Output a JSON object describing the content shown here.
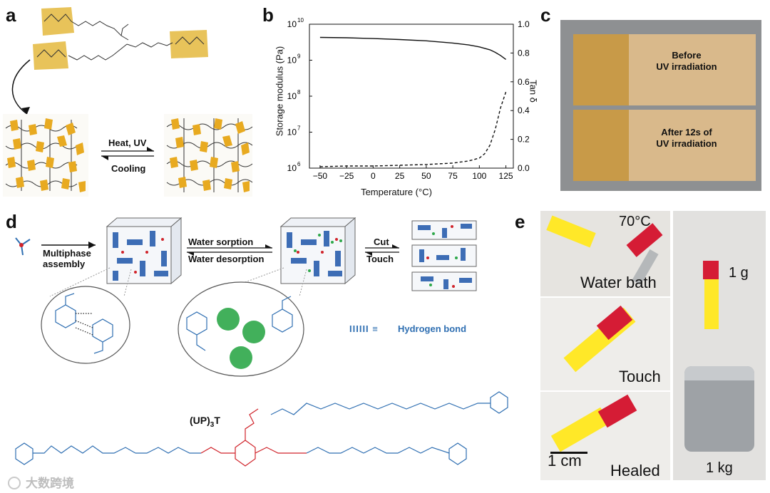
{
  "panels": {
    "a": "a",
    "b": "b",
    "c": "c",
    "d": "d",
    "e": "e"
  },
  "panel_a": {
    "forward": "Heat, UV",
    "reverse": "Cooling"
  },
  "chart_data": {
    "type": "line",
    "xlabel": "Temperature (°C)",
    "ylabel": "Storage modulus (Pa)",
    "y2label": "Tan δ",
    "x_ticks": [
      "−50",
      "−25",
      "0",
      "25",
      "50",
      "75",
      "100",
      "125"
    ],
    "x_tick_values": [
      -50,
      -25,
      0,
      25,
      50,
      75,
      100,
      125
    ],
    "xlim": [
      -60,
      132
    ],
    "ylim_log10": [
      6,
      10
    ],
    "y_ticks": [
      {
        "base": "10",
        "exp": "10",
        "v": 10
      },
      {
        "base": "10",
        "exp": "9",
        "v": 9
      },
      {
        "base": "10",
        "exp": "8",
        "v": 8
      },
      {
        "base": "10",
        "exp": "7",
        "v": 7
      },
      {
        "base": "10",
        "exp": "6",
        "v": 6
      }
    ],
    "y2lim": [
      0,
      1.0
    ],
    "y2_ticks": [
      "1.0",
      "0.8",
      "0.6",
      "0.4",
      "0.2",
      "0.0"
    ],
    "y2_tick_values": [
      1.0,
      0.8,
      0.6,
      0.4,
      0.2,
      0.0
    ],
    "series": [
      {
        "axis": "left",
        "style": "solid",
        "x": [
          -50,
          -25,
          0,
          25,
          50,
          75,
          90,
          100,
          110,
          115,
          120,
          125
        ],
        "y": [
          4300000000.0,
          4200000000.0,
          4000000000.0,
          3750000000.0,
          3450000000.0,
          3000000000.0,
          2650000000.0,
          2350000000.0,
          1950000000.0,
          1650000000.0,
          1350000000.0,
          1050000000.0
        ]
      },
      {
        "axis": "right",
        "style": "dashed",
        "x": [
          -50,
          -25,
          0,
          25,
          50,
          75,
          90,
          100,
          105,
          110,
          115,
          120,
          125
        ],
        "y": [
          0.01,
          0.015,
          0.015,
          0.02,
          0.025,
          0.035,
          0.05,
          0.07,
          0.1,
          0.16,
          0.27,
          0.42,
          0.53
        ]
      }
    ]
  },
  "panel_c": {
    "before": [
      "Before",
      "UV irradiation"
    ],
    "after": [
      "After 12s of",
      "UV irradiation"
    ]
  },
  "panel_d": {
    "step1": [
      "Multiphase",
      "assembly"
    ],
    "step2_top": "Water sorption",
    "step2_bottom": "Water desorption",
    "step3_top": "Cut",
    "step3_bottom": "Touch",
    "legend_symbol": "IIIIII  ≡",
    "legend_text": "Hydrogen bond",
    "compound": "(UP)",
    "compound_sub": "3",
    "compound_suffix": "T"
  },
  "panel_e": {
    "temp": "70°C",
    "water": "Water bath",
    "touch": "Touch",
    "scale": "1 cm",
    "healed": "Healed",
    "mass_small": "1 g",
    "mass_large": "1 kg"
  },
  "watermark": "大数跨境"
}
